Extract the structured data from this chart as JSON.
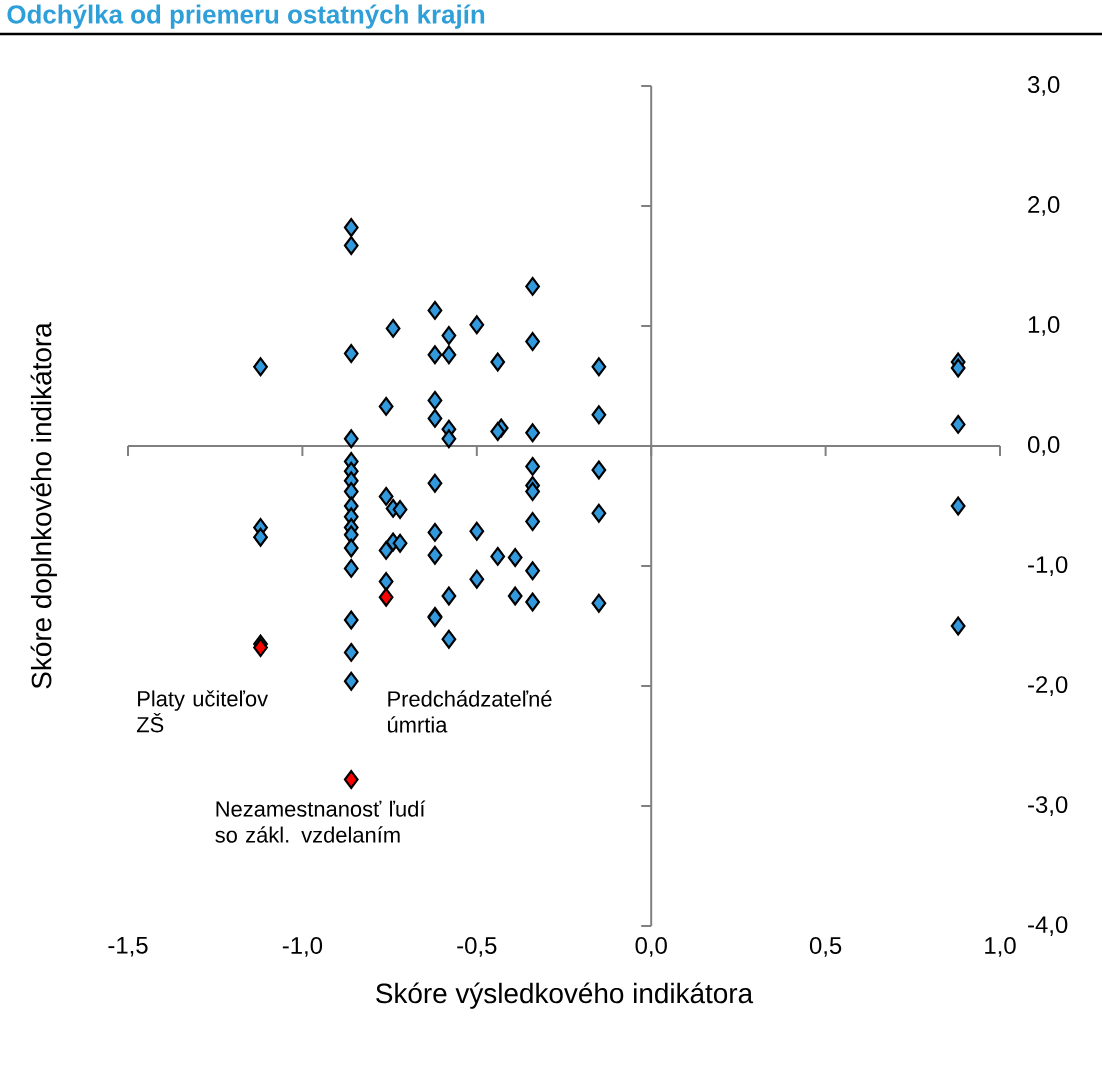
{
  "chart_data": {
    "type": "scatter",
    "title": "Odchýlka od priemeru ostatných krajín",
    "xlabel": "Skóre výsledkového indikátora",
    "ylabel": "Skóre doplnkového indikátora",
    "xlim": [
      -1.5,
      1.0
    ],
    "ylim": [
      -4.0,
      3.0
    ],
    "xticks": [
      {
        "value": -1.5,
        "label": "-1,5"
      },
      {
        "value": -1.0,
        "label": "-1,0"
      },
      {
        "value": -0.5,
        "label": "-0,5"
      },
      {
        "value": 0.0,
        "label": "0,0"
      },
      {
        "value": 0.5,
        "label": "0,5"
      },
      {
        "value": 1.0,
        "label": "1,0"
      }
    ],
    "yticks": [
      {
        "value": -4.0,
        "label": "-4,0"
      },
      {
        "value": -3.0,
        "label": "-3,0"
      },
      {
        "value": -2.0,
        "label": "-2,0"
      },
      {
        "value": -1.0,
        "label": "-1,0"
      },
      {
        "value": 0.0,
        "label": "0,0"
      },
      {
        "value": 1.0,
        "label": "1,0"
      },
      {
        "value": 2.0,
        "label": "2,0"
      },
      {
        "value": 3.0,
        "label": "3,0"
      }
    ],
    "marker": "diamond",
    "series": [
      {
        "color": "#3399dd",
        "x": [
          -1.12,
          -1.12,
          -1.12,
          -1.12,
          -0.86,
          -0.86,
          -0.86,
          -0.86,
          -0.86,
          -0.86,
          -0.86,
          -0.86,
          -0.86,
          -0.86,
          -0.86,
          -0.86,
          -0.86,
          -0.86,
          -0.86,
          -0.86,
          -0.86,
          -0.76,
          -0.76,
          -0.74,
          -0.74,
          -0.76,
          -0.76,
          -0.74,
          -0.72,
          -0.72,
          -0.62,
          -0.5,
          -0.58,
          -0.62,
          -0.58,
          -0.44,
          -0.62,
          -0.62,
          -0.58,
          -0.58,
          -0.62,
          -0.62,
          -0.62,
          -0.5,
          -0.62,
          -0.44,
          -0.39,
          -0.5,
          -0.58,
          -0.62,
          -0.58,
          -0.34,
          -0.34,
          -0.15,
          -0.43,
          -0.15,
          -0.44,
          -0.34,
          -0.34,
          -0.15,
          -0.34,
          -0.34,
          -0.15,
          -0.34,
          -0.34,
          -0.39,
          -0.34,
          -0.15,
          0.88,
          0.88,
          0.88,
          0.88,
          0.88
        ],
        "values": [
          0.66,
          -0.68,
          -0.76,
          -1.65,
          1.82,
          1.67,
          0.77,
          0.06,
          -0.13,
          -0.21,
          -0.29,
          -0.38,
          -0.5,
          -0.59,
          -0.68,
          -0.74,
          -0.85,
          -1.02,
          -1.45,
          -1.72,
          -1.96,
          0.33,
          -0.42,
          -0.52,
          -0.8,
          -0.87,
          -1.13,
          0.98,
          -0.53,
          -0.81,
          1.13,
          1.01,
          0.92,
          0.76,
          0.76,
          0.7,
          0.38,
          0.23,
          0.14,
          0.06,
          -0.31,
          -0.72,
          -0.91,
          -0.71,
          -1.42,
          -0.92,
          -0.93,
          -1.11,
          -1.25,
          -1.43,
          -1.61,
          1.33,
          0.87,
          0.66,
          0.15,
          0.26,
          0.12,
          0.11,
          -0.17,
          -0.2,
          -0.33,
          -0.38,
          -0.56,
          -0.63,
          -1.04,
          -1.25,
          -1.3,
          -1.31,
          0.7,
          0.65,
          0.18,
          -0.5,
          -1.5
        ]
      },
      {
        "color": "#ff0000",
        "x": [
          -1.12,
          -0.76,
          -0.86
        ],
        "values": [
          -1.68,
          -1.26,
          -2.78
        ]
      }
    ],
    "annotations": [
      "Platy učiteľov ZŠ",
      "Predchádzateľné úmrtia",
      "Nezamestnanosť ľudí so zákl. vzdelaním"
    ]
  }
}
